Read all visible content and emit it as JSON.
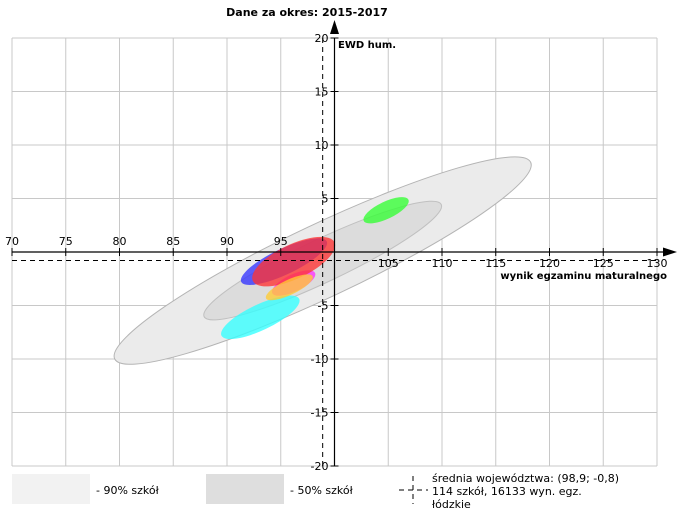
{
  "chart_data": {
    "type": "scatter",
    "title": "Dane za okres: 2015-2017",
    "xlabel": "wynik egzaminu maturalnego",
    "ylabel": "EWD hum.",
    "xlim": [
      70,
      130
    ],
    "ylim": [
      -20,
      20
    ],
    "x_ticks": [
      70,
      75,
      80,
      85,
      90,
      95,
      100,
      105,
      110,
      115,
      120,
      125,
      130
    ],
    "x_tick_labels": [
      "70",
      "75",
      "80",
      "85",
      "90",
      "95",
      "",
      "105",
      "110",
      "115",
      "120",
      "125",
      "130"
    ],
    "y_ticks": [
      -20,
      -15,
      -10,
      -5,
      0,
      5,
      10,
      15,
      20
    ],
    "y_tick_labels": [
      "-20",
      "-15",
      "-10",
      "-5",
      "",
      "5",
      "10",
      "15",
      "20"
    ],
    "grid": true,
    "reference_point": {
      "x": 98.9,
      "y": -0.8
    },
    "regions": [
      {
        "label": "- 90% szkół",
        "color": "#ebebeb",
        "cx": 98.9,
        "cy": -0.8,
        "rx": 21.4,
        "ry": 3.4,
        "angle": 25.3
      },
      {
        "label": "- 50% szkół",
        "color": "#dcdcdc",
        "cx": 98.9,
        "cy": -0.8,
        "rx": 12.2,
        "ry": 2.0,
        "angle": 25.3
      }
    ],
    "schools": [
      {
        "color": "#33ff33",
        "cx": 104.8,
        "cy": 3.9,
        "rx": 2.3,
        "ry": 0.8,
        "angle": 25.3
      },
      {
        "color": "#33ffff",
        "cx": 93.1,
        "cy": -6.1,
        "rx": 4.0,
        "ry": 1.2,
        "angle": 25.3
      },
      {
        "color": "#ff33ff",
        "cx": 96.2,
        "cy": -2.9,
        "rx": 2.2,
        "ry": 0.8,
        "angle": 25.3
      },
      {
        "color": "#3333ff",
        "cx": 95.3,
        "cy": -0.9,
        "rx": 4.4,
        "ry": 1.2,
        "angle": 25.3
      },
      {
        "color": "#ff3333",
        "cx": 96.2,
        "cy": -0.9,
        "rx": 4.2,
        "ry": 1.6,
        "angle": 25.3
      },
      {
        "color": "#ffcc33",
        "cx": 95.8,
        "cy": -3.3,
        "rx": 2.4,
        "ry": 0.7,
        "angle": 25.3
      }
    ],
    "legend": [
      {
        "text": "- 90% szkół"
      },
      {
        "text": "- 50% szkół"
      },
      {
        "text": "średnia województwa: (98,9; -0,8)"
      },
      {
        "text": "114 szkół, 16133 wyn. egz."
      },
      {
        "text": "łódzkie"
      }
    ]
  },
  "colors": {
    "grid": "#c8c8c8",
    "axis": "#000000"
  }
}
